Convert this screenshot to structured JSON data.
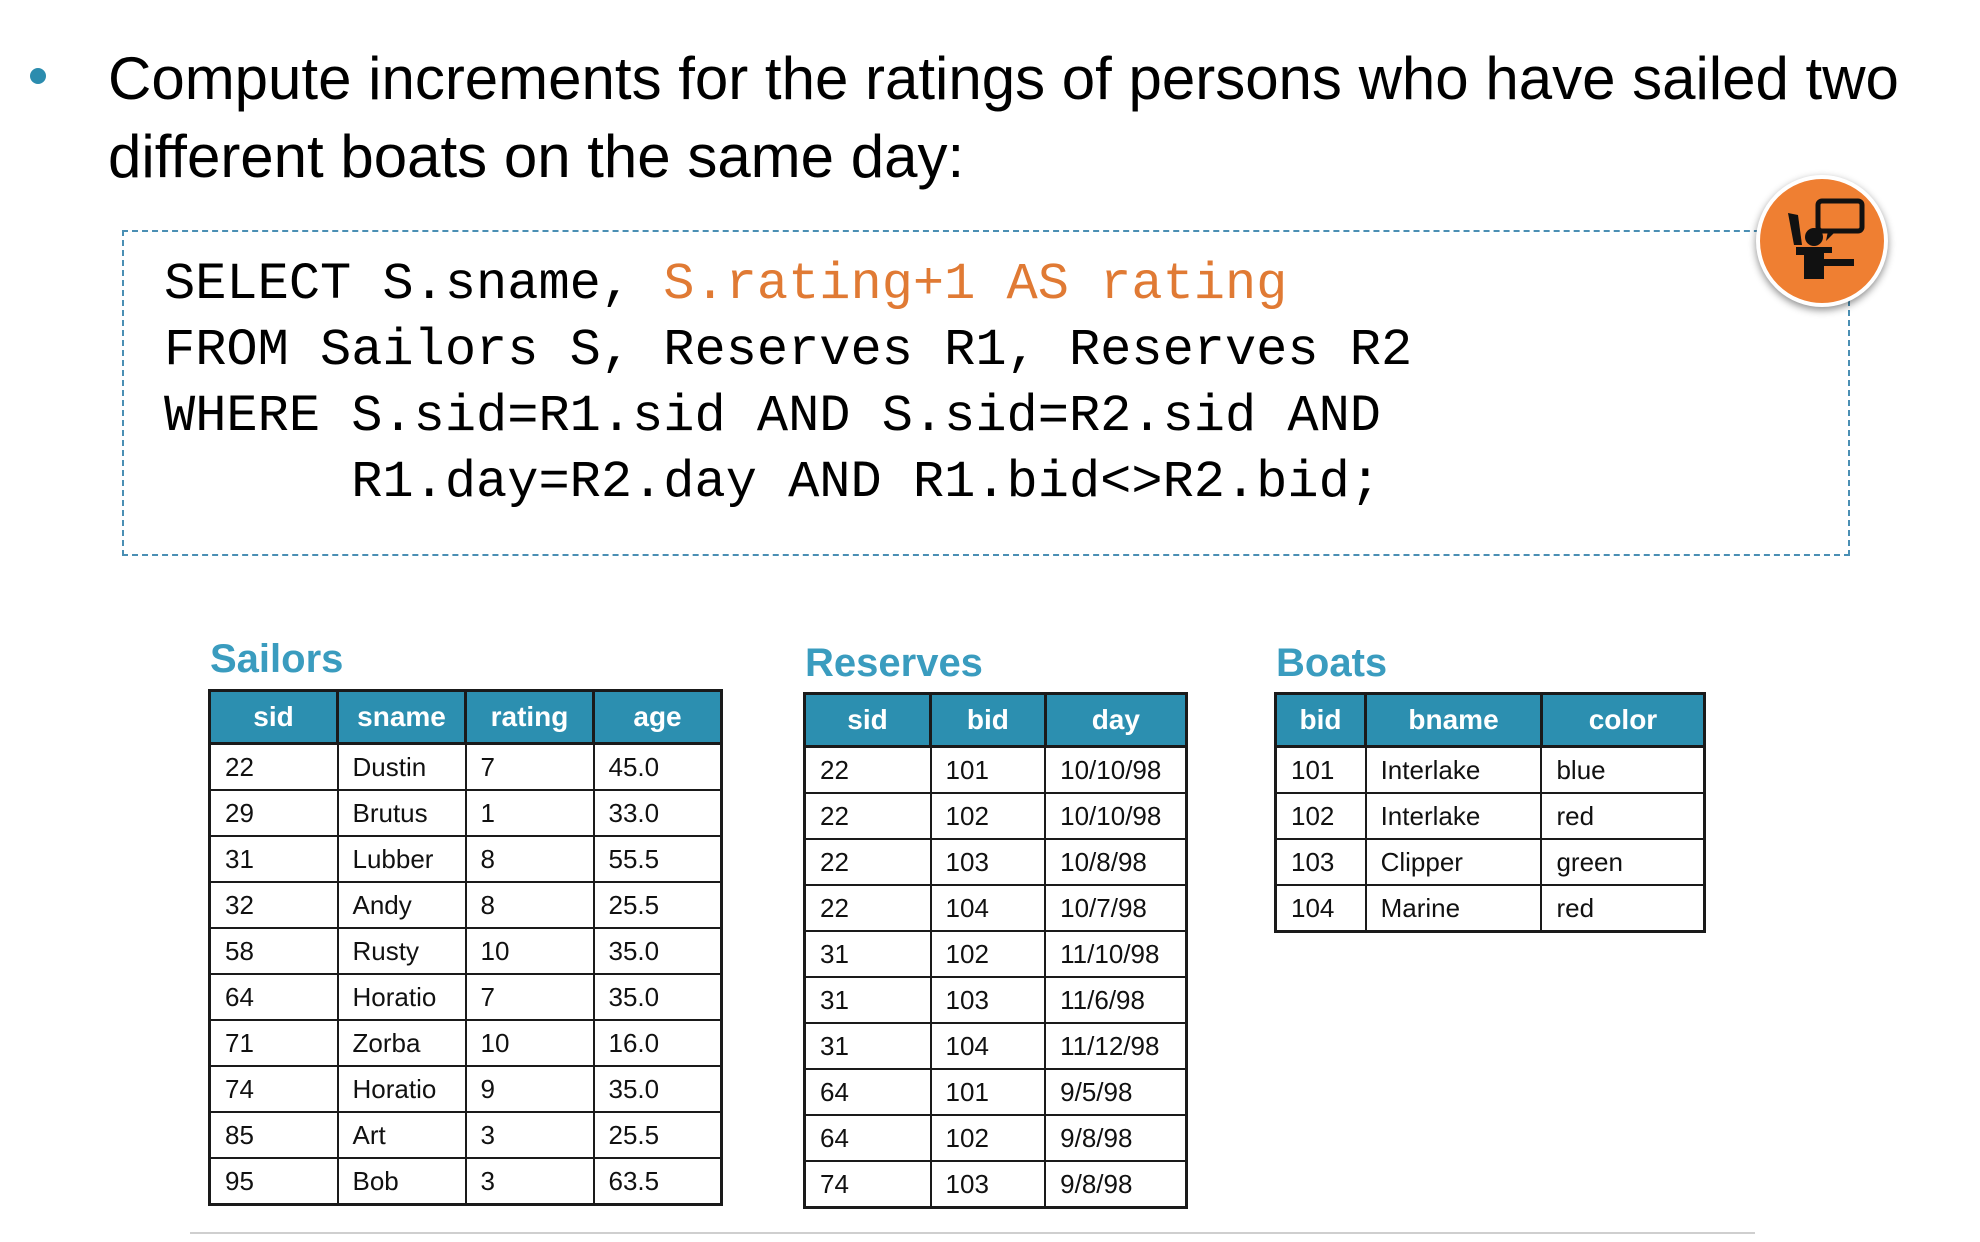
{
  "bullet": "Compute increments for the ratings of persons who have sailed two different boats on the same day:",
  "sql": {
    "line1_a": "SELECT S.sname, ",
    "line1_b": "S.rating+1 AS rating",
    "line2": "FROM Sailors S, Reserves R1, Reserves R2",
    "line3": "WHERE S.sid=R1.sid AND S.sid=R2.sid AND",
    "line4": "      R1.day=R2.day AND R1.bid<>R2.bid;"
  },
  "colors": {
    "accent": "#e07a34",
    "header": "#2c8fb0",
    "title": "#3a9cbf"
  },
  "icons": {
    "presenter": "presenter-question-icon"
  },
  "sailors": {
    "title": "Sailors",
    "columns": [
      "sid",
      "sname",
      "rating",
      "age"
    ],
    "rows": [
      [
        "22",
        "Dustin",
        "7",
        "45.0"
      ],
      [
        "29",
        "Brutus",
        "1",
        "33.0"
      ],
      [
        "31",
        "Lubber",
        "8",
        "55.5"
      ],
      [
        "32",
        "Andy",
        "8",
        "25.5"
      ],
      [
        "58",
        "Rusty",
        "10",
        "35.0"
      ],
      [
        "64",
        "Horatio",
        "7",
        "35.0"
      ],
      [
        "71",
        "Zorba",
        "10",
        "16.0"
      ],
      [
        "74",
        "Horatio",
        "9",
        "35.0"
      ],
      [
        "85",
        "Art",
        "3",
        "25.5"
      ],
      [
        "95",
        "Bob",
        "3",
        "63.5"
      ]
    ]
  },
  "reserves": {
    "title": "Reserves",
    "columns": [
      "sid",
      "bid",
      "day"
    ],
    "rows": [
      [
        "22",
        "101",
        "10/10/98"
      ],
      [
        "22",
        "102",
        "10/10/98"
      ],
      [
        "22",
        "103",
        "10/8/98"
      ],
      [
        "22",
        "104",
        "10/7/98"
      ],
      [
        "31",
        "102",
        "11/10/98"
      ],
      [
        "31",
        "103",
        "11/6/98"
      ],
      [
        "31",
        "104",
        "11/12/98"
      ],
      [
        "64",
        "101",
        "9/5/98"
      ],
      [
        "64",
        "102",
        "9/8/98"
      ],
      [
        "74",
        "103",
        "9/8/98"
      ]
    ]
  },
  "boats": {
    "title": "Boats",
    "columns": [
      "bid",
      "bname",
      "color"
    ],
    "rows": [
      [
        "101",
        "Interlake",
        "blue"
      ],
      [
        "102",
        "Interlake",
        "red"
      ],
      [
        "103",
        "Clipper",
        "green"
      ],
      [
        "104",
        "Marine",
        "red"
      ]
    ]
  }
}
